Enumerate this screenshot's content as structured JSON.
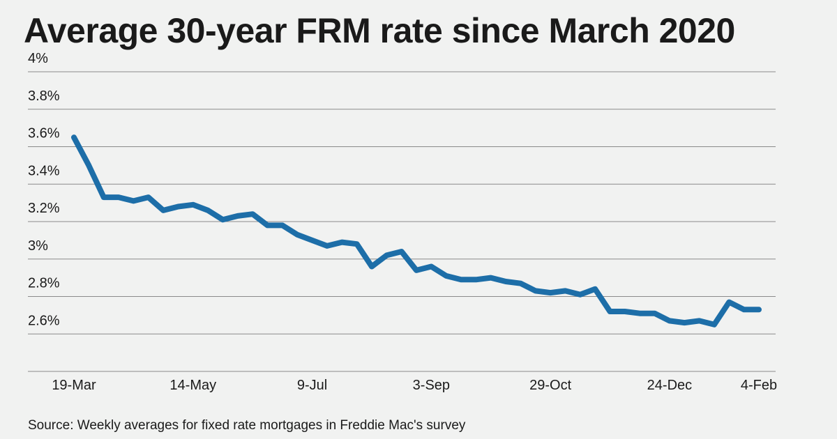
{
  "header": {
    "title": "Average 30-year FRM rate since March 2020"
  },
  "footer": {
    "source": "Source: Weekly averages for fixed rate mortgages in Freddie Mac's survey"
  },
  "colors": {
    "line": "#1d6ea8",
    "grid": "#8a8a8a",
    "background": "#f1f2f1",
    "text": "#1a1a1a"
  },
  "chart_data": {
    "type": "line",
    "title": "Average 30-year FRM rate since March 2020",
    "xlabel": "",
    "ylabel": "",
    "ylim": [
      2.4,
      4.0
    ],
    "grid": true,
    "y_ticks": [
      {
        "value": 4.0,
        "label": "4%"
      },
      {
        "value": 3.8,
        "label": "3.8%"
      },
      {
        "value": 3.6,
        "label": "3.6%"
      },
      {
        "value": 3.4,
        "label": "3.4%"
      },
      {
        "value": 3.2,
        "label": "3.2%"
      },
      {
        "value": 3.0,
        "label": "3%"
      },
      {
        "value": 2.8,
        "label": "2.8%"
      },
      {
        "value": 2.6,
        "label": "2.6%"
      }
    ],
    "x_ticks": [
      {
        "index": 0,
        "label": "19-Mar"
      },
      {
        "index": 8,
        "label": "14-May"
      },
      {
        "index": 16,
        "label": "9-Jul"
      },
      {
        "index": 24,
        "label": "3-Sep"
      },
      {
        "index": 32,
        "label": "29-Oct"
      },
      {
        "index": 40,
        "label": "24-Dec"
      },
      {
        "index": 46,
        "label": "4-Feb"
      }
    ],
    "series": [
      {
        "name": "Average 30-year FRM rate",
        "values": [
          3.65,
          3.5,
          3.33,
          3.33,
          3.31,
          3.33,
          3.26,
          3.28,
          3.29,
          3.26,
          3.21,
          3.23,
          3.24,
          3.18,
          3.18,
          3.13,
          3.1,
          3.07,
          3.09,
          3.08,
          2.96,
          3.02,
          3.04,
          2.94,
          2.96,
          2.91,
          2.89,
          2.89,
          2.9,
          2.88,
          2.87,
          2.83,
          2.82,
          2.83,
          2.81,
          2.84,
          2.72,
          2.72,
          2.71,
          2.71,
          2.67,
          2.66,
          2.67,
          2.65,
          2.77,
          2.73,
          2.73
        ]
      }
    ]
  }
}
